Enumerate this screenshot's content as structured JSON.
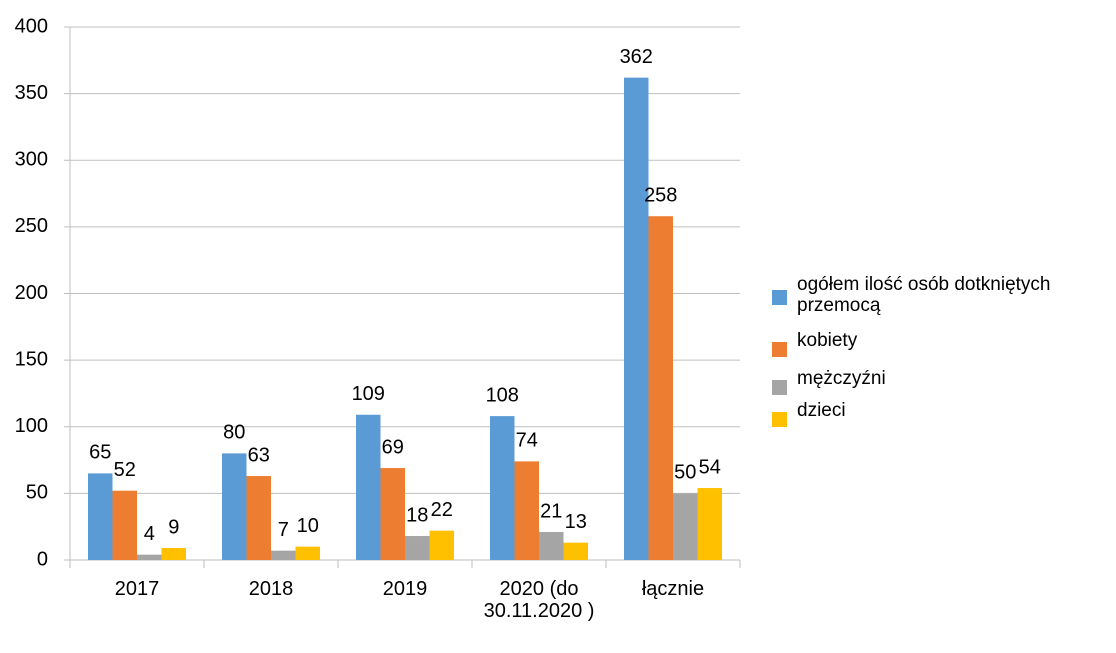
{
  "chart_data": {
    "type": "bar",
    "categories": [
      "2017",
      "2018",
      "2019",
      "2020 (do 30.11.2020 )",
      "łącznie"
    ],
    "series": [
      {
        "name": "ogółem ilość osób dotkniętych przemocą",
        "color": "#5b9bd5",
        "values": [
          65,
          80,
          109,
          108,
          362
        ]
      },
      {
        "name": "kobiety",
        "color": "#ed7d31",
        "values": [
          52,
          63,
          69,
          74,
          258
        ]
      },
      {
        "name": "mężczyźni",
        "color": "#a5a5a5",
        "values": [
          4,
          7,
          18,
          21,
          50
        ]
      },
      {
        "name": "dzieci",
        "color": "#ffc000",
        "values": [
          9,
          10,
          22,
          13,
          54
        ]
      }
    ],
    "ylim": [
      0,
      400
    ],
    "yticks": [
      0,
      50,
      100,
      150,
      200,
      250,
      300,
      350,
      400
    ],
    "grid": true,
    "legend": "right"
  }
}
